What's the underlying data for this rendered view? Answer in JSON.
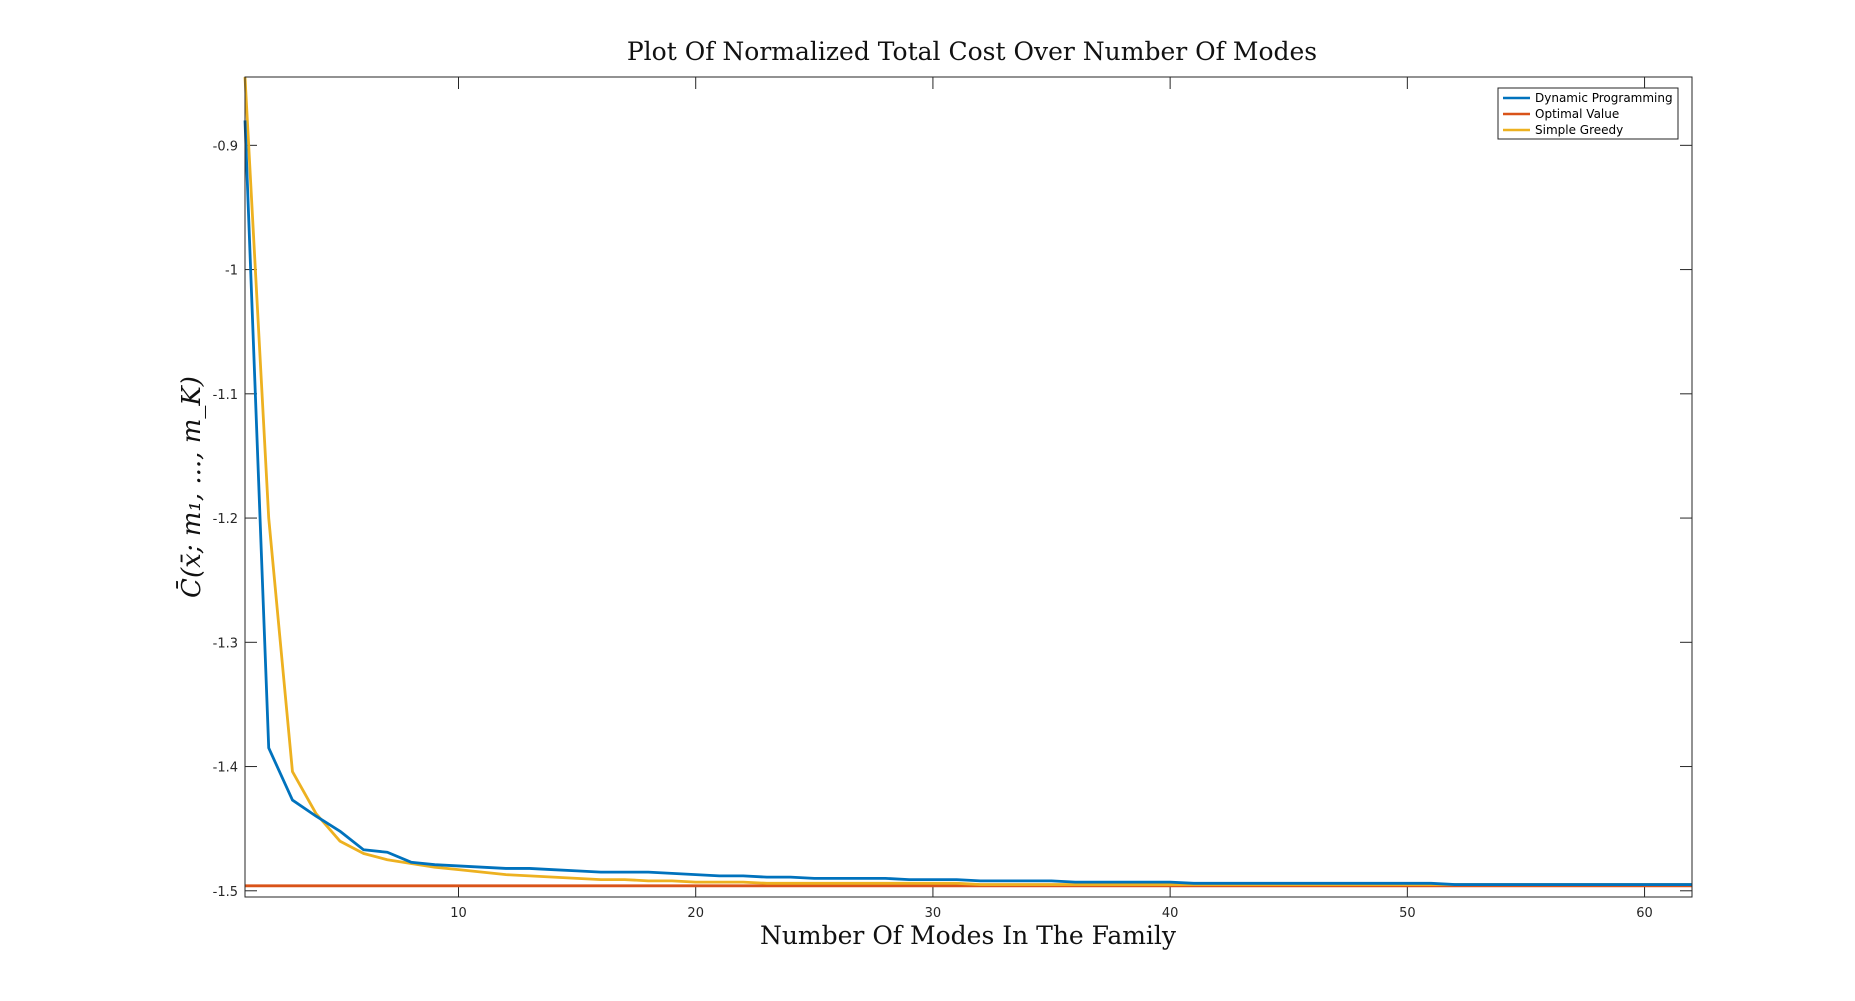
{
  "chart_data": {
    "type": "line",
    "title": "Plot Of Normalized Total Cost Over Number Of Modes",
    "xlabel": "Number Of Modes In The Family",
    "ylabel": "C̄(x̄; m₁, ..., m_K)",
    "xlim": [
      1,
      62
    ],
    "ylim": [
      -1.505,
      -0.845
    ],
    "xticks": [
      10,
      20,
      30,
      40,
      50,
      60
    ],
    "yticks": [
      -1.5,
      -1.4,
      -1.3,
      -1.2,
      -1.1,
      -1,
      -0.9
    ],
    "ytick_labels": [
      "-1.5",
      "-1.4",
      "-1.3",
      "-1.2",
      "-1.1",
      "-1",
      "-0.9"
    ],
    "grid": false,
    "legend_position": "top-right",
    "series": [
      {
        "name": "Dynamic Programming",
        "color": "#0072BD",
        "x": [
          1,
          2,
          3,
          4,
          5,
          6,
          7,
          8,
          9,
          10,
          11,
          12,
          13,
          14,
          15,
          16,
          17,
          18,
          19,
          20,
          21,
          22,
          23,
          24,
          25,
          26,
          27,
          28,
          29,
          30,
          31,
          32,
          33,
          34,
          35,
          36,
          37,
          38,
          39,
          40,
          41,
          42,
          43,
          44,
          45,
          46,
          47,
          48,
          49,
          50,
          51,
          52,
          53,
          54,
          55,
          56,
          57,
          58,
          59,
          60,
          61,
          62
        ],
        "values": [
          -0.88,
          -1.385,
          -1.427,
          -1.44,
          -1.452,
          -1.467,
          -1.469,
          -1.477,
          -1.479,
          -1.48,
          -1.481,
          -1.482,
          -1.482,
          -1.483,
          -1.484,
          -1.485,
          -1.485,
          -1.485,
          -1.486,
          -1.487,
          -1.488,
          -1.488,
          -1.489,
          -1.489,
          -1.49,
          -1.49,
          -1.49,
          -1.49,
          -1.491,
          -1.491,
          -1.491,
          -1.492,
          -1.492,
          -1.492,
          -1.492,
          -1.493,
          -1.493,
          -1.493,
          -1.493,
          -1.493,
          -1.494,
          -1.494,
          -1.494,
          -1.494,
          -1.494,
          -1.494,
          -1.494,
          -1.494,
          -1.494,
          -1.494,
          -1.494,
          -1.495,
          -1.495,
          -1.495,
          -1.495,
          -1.495,
          -1.495,
          -1.495,
          -1.495,
          -1.495,
          -1.495,
          -1.495
        ]
      },
      {
        "name": "Optimal Value",
        "color": "#D95319",
        "x": [
          1,
          62
        ],
        "values": [
          -1.496,
          -1.496
        ]
      },
      {
        "name": "Simple Greedy",
        "color": "#EDB120",
        "x": [
          1,
          2,
          3,
          4,
          5,
          6,
          7,
          8,
          9,
          10,
          11,
          12,
          13,
          14,
          15,
          16,
          17,
          18,
          19,
          20,
          21,
          22,
          23,
          24,
          25,
          26,
          27,
          28,
          29,
          30,
          31,
          32,
          33,
          34,
          35,
          36,
          37,
          38,
          39,
          40,
          41,
          42,
          43,
          44,
          45,
          46,
          47,
          48,
          49,
          50,
          51,
          52,
          53,
          54,
          55,
          56,
          57,
          58,
          59,
          60,
          61,
          62
        ],
        "values": [
          -0.845,
          -1.2,
          -1.404,
          -1.438,
          -1.46,
          -1.47,
          -1.475,
          -1.478,
          -1.481,
          -1.483,
          -1.485,
          -1.487,
          -1.488,
          -1.489,
          -1.49,
          -1.491,
          -1.491,
          -1.492,
          -1.492,
          -1.493,
          -1.493,
          -1.493,
          -1.494,
          -1.494,
          -1.494,
          -1.494,
          -1.494,
          -1.494,
          -1.494,
          -1.494,
          -1.494,
          -1.495,
          -1.495,
          -1.495,
          -1.495,
          -1.495,
          -1.495,
          -1.495,
          -1.495,
          -1.495,
          -1.495,
          -1.495,
          -1.495,
          -1.495,
          -1.495,
          -1.495,
          -1.495,
          -1.495,
          -1.495,
          -1.495,
          -1.495,
          -1.495,
          -1.495,
          -1.495,
          -1.495,
          -1.495,
          -1.495,
          -1.495,
          -1.495,
          -1.495,
          -1.495,
          -1.495
        ]
      }
    ]
  }
}
